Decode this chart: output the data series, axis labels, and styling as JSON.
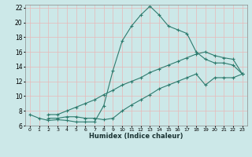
{
  "xlabel": "Humidex (Indice chaleur)",
  "bg_color": "#cce8e8",
  "grid_color": "#e8b8b8",
  "line_color": "#2e7b6e",
  "xlim": [
    -0.5,
    23.5
  ],
  "ylim": [
    6,
    22.4
  ],
  "xticks": [
    0,
    1,
    2,
    3,
    4,
    5,
    6,
    7,
    8,
    9,
    10,
    11,
    12,
    13,
    14,
    15,
    16,
    17,
    18,
    19,
    20,
    21,
    22,
    23
  ],
  "yticks": [
    6,
    8,
    10,
    12,
    14,
    16,
    18,
    20,
    22
  ],
  "curve1_x": [
    0,
    1,
    2,
    3,
    4,
    5,
    6,
    7,
    8,
    9,
    10,
    11,
    12,
    13,
    14,
    15,
    16,
    17,
    18,
    19,
    20,
    21,
    22,
    23
  ],
  "curve1_y": [
    7.5,
    7.0,
    6.7,
    6.8,
    6.7,
    6.5,
    6.5,
    6.5,
    8.7,
    13.5,
    17.5,
    19.5,
    21.0,
    22.2,
    21.0,
    19.5,
    19.0,
    18.5,
    16.0,
    15.0,
    14.5,
    14.5,
    14.2,
    13.0
  ],
  "curve2_x": [
    2,
    3,
    4,
    5,
    6,
    7,
    8,
    9,
    10,
    11,
    12,
    13,
    14,
    15,
    16,
    17,
    18,
    19,
    20,
    21,
    22,
    23
  ],
  "curve2_y": [
    7.5,
    7.5,
    8.0,
    8.5,
    9.0,
    9.5,
    10.2,
    10.8,
    11.5,
    12.0,
    12.5,
    13.2,
    13.7,
    14.2,
    14.7,
    15.2,
    15.7,
    16.0,
    15.5,
    15.2,
    15.0,
    13.0
  ],
  "curve3_x": [
    2,
    3,
    4,
    5,
    6,
    7,
    8,
    9,
    10,
    11,
    12,
    13,
    14,
    15,
    16,
    17,
    18,
    19,
    20,
    21,
    22,
    23
  ],
  "curve3_y": [
    7.0,
    7.0,
    7.2,
    7.2,
    7.0,
    7.0,
    6.8,
    7.0,
    8.0,
    8.8,
    9.5,
    10.2,
    11.0,
    11.5,
    12.0,
    12.5,
    13.0,
    11.5,
    12.5,
    12.5,
    12.5,
    13.0
  ]
}
